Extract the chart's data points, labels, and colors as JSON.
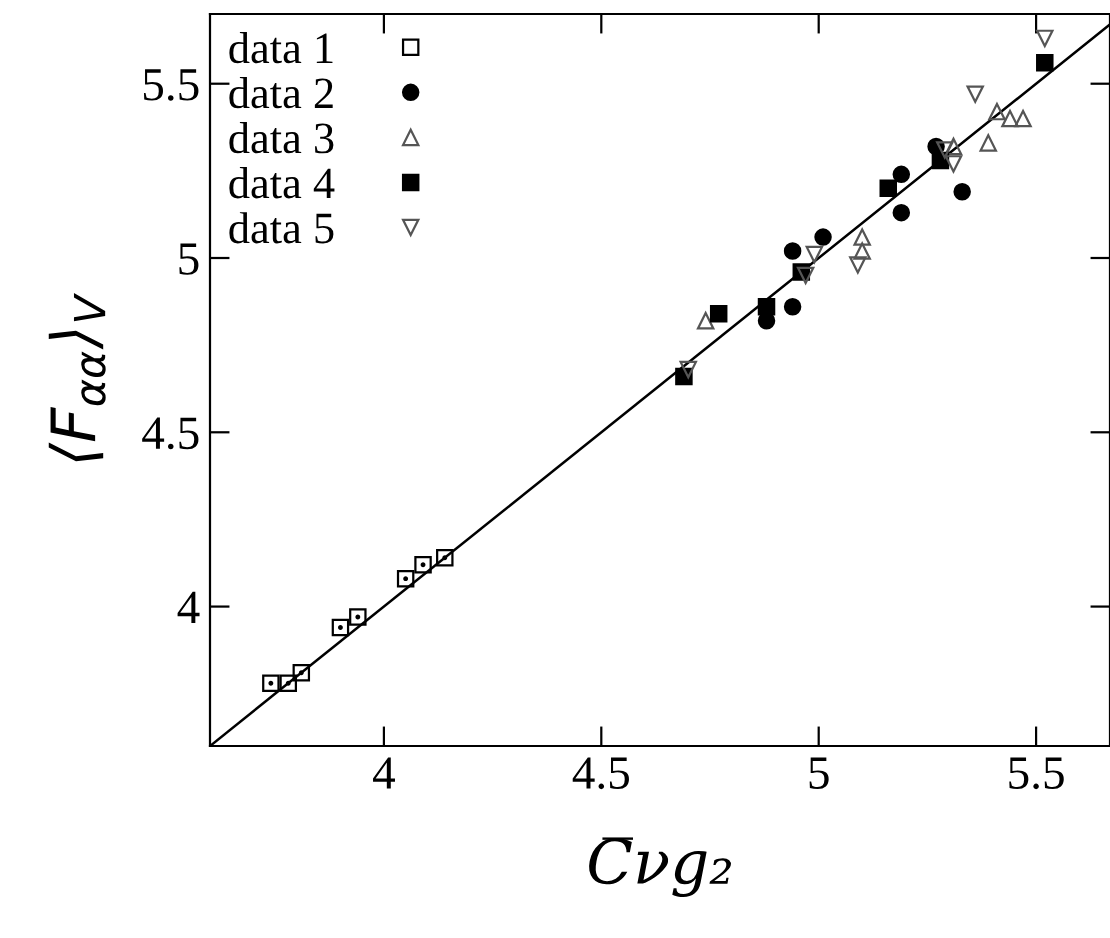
{
  "chart_data": {
    "type": "scatter",
    "xlabel": "C̅νg₂",
    "ylabel": "⟨F$_{αα}$⟩$_{V}$",
    "xlim": [
      3.6,
      5.67
    ],
    "ylim": [
      3.6,
      5.7
    ],
    "xticks": [
      4,
      4.5,
      5,
      5.5
    ],
    "yticks": [
      4,
      4.5,
      5,
      5.5
    ],
    "grid": false,
    "legend": "top left",
    "series": [
      {
        "name": "data 1",
        "color": "#000000",
        "marker": "square-open",
        "x": [
          3.74,
          3.78,
          3.81,
          3.9,
          3.94,
          4.05,
          4.09,
          4.14
        ],
        "values": [
          3.78,
          3.78,
          3.81,
          3.94,
          3.97,
          4.08,
          4.12,
          4.14
        ]
      },
      {
        "name": "data 2",
        "color": "#000000",
        "marker": "circle",
        "x": [
          4.88,
          4.94,
          4.94,
          5.01,
          5.19,
          5.19,
          5.27,
          5.33
        ],
        "values": [
          4.82,
          4.86,
          5.02,
          5.06,
          5.24,
          5.13,
          5.32,
          5.19
        ]
      },
      {
        "name": "data 3",
        "color": "#555555",
        "marker": "triangle-open",
        "x": [
          4.74,
          4.97,
          5.1,
          5.1,
          5.31,
          5.39,
          5.41,
          5.44,
          5.47
        ],
        "values": [
          4.82,
          null,
          5.02,
          5.06,
          5.32,
          5.33,
          5.42,
          5.4,
          5.4
        ]
      },
      {
        "name": "data 4",
        "color": "#000000",
        "marker": "square",
        "x": [
          4.69,
          4.77,
          4.88,
          4.96,
          5.16,
          5.28,
          5.52
        ],
        "values": [
          4.66,
          4.84,
          4.86,
          4.96,
          5.2,
          5.28,
          5.56
        ]
      },
      {
        "name": "data 5",
        "color": "#555555",
        "marker": "triangle-down-open",
        "x": [
          4.7,
          4.97,
          4.99,
          5.09,
          5.29,
          5.31,
          5.36,
          5.52
        ],
        "values": [
          4.68,
          4.95,
          5.01,
          4.98,
          5.31,
          5.27,
          5.47,
          5.63
        ]
      },
      {
        "type": "line",
        "color": "#000000",
        "x": [
          3.6,
          5.67
        ],
        "values": [
          3.6,
          5.67
        ]
      }
    ]
  }
}
